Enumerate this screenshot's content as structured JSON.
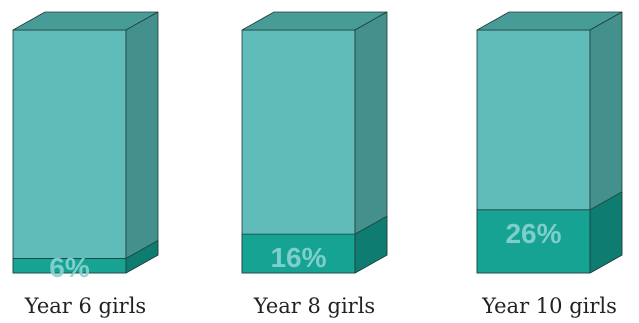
{
  "chart_data": {
    "type": "bar",
    "categories": [
      "Year 6 girls",
      "Year 8 girls",
      "Year 10 girls"
    ],
    "values": [
      6,
      16,
      26
    ],
    "value_labels": [
      "6%",
      "16%",
      "26%"
    ],
    "ylim": [
      0,
      100
    ],
    "title": "",
    "xlabel": "",
    "ylabel": "",
    "grid": false,
    "legend": "none",
    "colors": {
      "total_front": "#5fbcb9",
      "total_side": "#44908c",
      "total_top": "#479c98",
      "value_front": "#16a394",
      "value_side": "#0f7c72",
      "value_top": "#139286",
      "edge": "#1f3d3b"
    }
  }
}
